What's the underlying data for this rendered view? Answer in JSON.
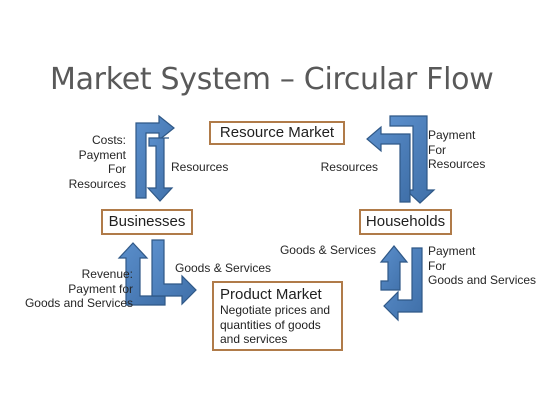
{
  "title": "Market System – Circular Flow",
  "nodes": {
    "resource_market": "Resource Market",
    "businesses": "Businesses",
    "households": "Households",
    "product_market": {
      "title": "Product Market",
      "description": [
        "Negotiate prices and",
        "quantities of goods",
        "and services"
      ]
    }
  },
  "labels": {
    "costs": [
      "Costs:",
      "Payment",
      "For",
      "Resources"
    ],
    "resources_left": "Resources",
    "resources_right": "Resources",
    "payment_for_resources": [
      "Payment",
      "For",
      "Resources"
    ],
    "goods_services_left": "Goods & Services",
    "goods_services_right": "Goods & Services",
    "revenue": [
      "Revenue:",
      "Payment for",
      "Goods and Services"
    ],
    "payment_for_goods": [
      "Payment",
      "For",
      "Goods and Services"
    ]
  },
  "colors": {
    "arrow_fill": "#4f81bd",
    "arrow_stroke": "#385d8a",
    "box_border": "#b07b49",
    "title": "#595959"
  }
}
